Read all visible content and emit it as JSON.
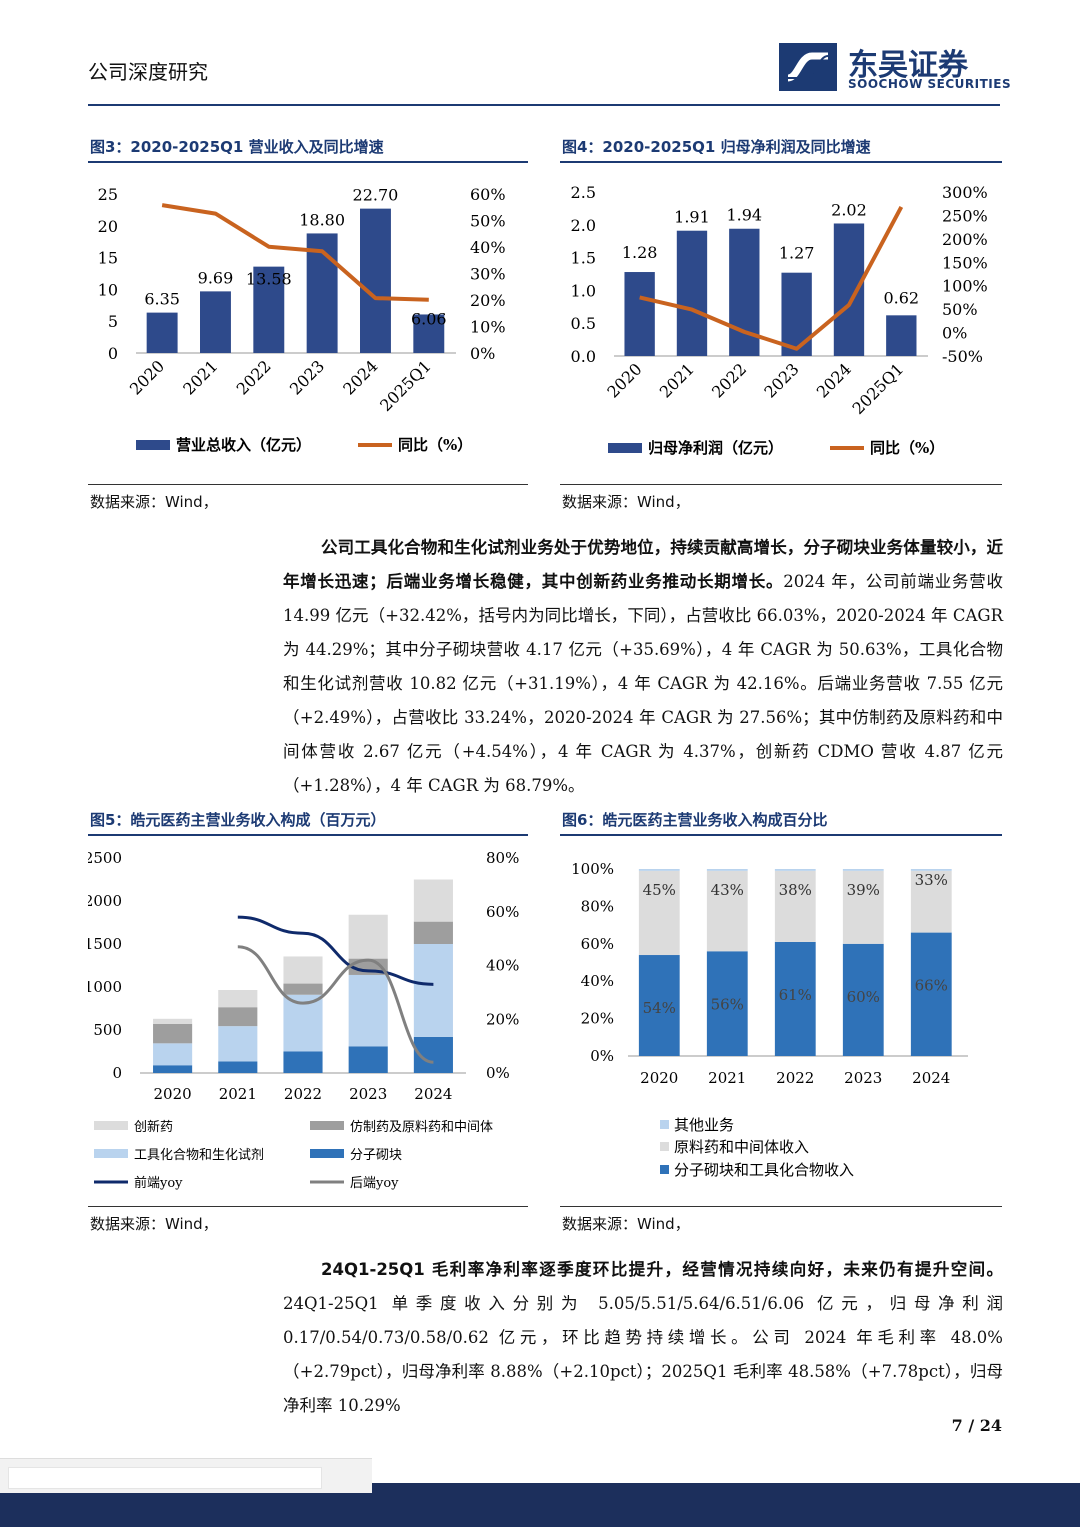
{
  "header": {
    "title": "公司深度研究",
    "logo_cn": "东吴证券",
    "logo_en": "SOOCHOW SECURITIES"
  },
  "colors": {
    "navy": "#2e4a8b",
    "orange": "#c9631f",
    "dark_blue": "#0f2a6b",
    "light_blue": "#b9d3ee",
    "mid_blue": "#2f72b8",
    "gray": "#9e9e9e",
    "light_gray": "#dcdcdc",
    "brand": "#1c3a73"
  },
  "fig3": {
    "title": "图3：2020-2025Q1 营业收入及同比增速",
    "source": "数据来源：Wind，",
    "legend": [
      "营业总收入（亿元）",
      "同比（%）"
    ],
    "y_left_ticks": [
      "25",
      "20",
      "15",
      "10",
      "5",
      "0"
    ],
    "y_right_ticks": [
      "60%",
      "50%",
      "40%",
      "30%",
      "20%",
      "10%",
      "0%"
    ],
    "bar_labels": [
      "6.35",
      "9.69",
      "13.58",
      "18.80",
      "22.70",
      "6.06"
    ]
  },
  "fig4": {
    "title": "图4：2020-2025Q1 归母净利润及同比增速",
    "source": "数据来源：Wind，",
    "legend": [
      "归母净利润（亿元）",
      "同比（%）"
    ],
    "y_left_ticks": [
      "2.5",
      "2.0",
      "1.5",
      "1.0",
      "0.5",
      "0.0"
    ],
    "y_right_ticks": [
      "300%",
      "250%",
      "200%",
      "150%",
      "100%",
      "50%",
      "0%",
      "-50%"
    ],
    "bar_labels": [
      "1.28",
      "1.91",
      "1.94",
      "1.27",
      "2.02",
      "0.62"
    ]
  },
  "fig5": {
    "title": "图5：皓元医药主营业务收入构成（百万元）",
    "source": "数据来源：Wind，",
    "legend": [
      "创新药",
      "仿制药及原料药和中间体",
      "工具化合物和生化试剂",
      "分子砌块",
      "前端yoy",
      "后端yoy"
    ],
    "y_left_ticks": [
      "2500",
      "2000",
      "1500",
      "1000",
      "500",
      "0"
    ],
    "y_right_ticks": [
      "80%",
      "60%",
      "40%",
      "20%",
      "0%"
    ]
  },
  "fig6": {
    "title": "图6：皓元医药主营业务收入构成百分比",
    "source": "数据来源：Wind，",
    "legend": [
      "其他业务",
      "原料药和中间体收入",
      "分子砌块和工具化合物收入"
    ],
    "y_ticks": [
      "100%",
      "80%",
      "60%",
      "40%",
      "20%",
      "0%"
    ],
    "top_labels": [
      "45%",
      "43%",
      "38%",
      "39%",
      "33%"
    ],
    "bottom_labels": [
      "54%",
      "56%",
      "61%",
      "60%",
      "66%"
    ]
  },
  "para1": [
    {
      "b": "公司工具化合物和生化试剂业务处于优势地位，持续贡献高增长，分子砌块业务体量较小，近年增长迅速；后端业务增长稳健，其中创新药业务推动长期增长。",
      "t": "2024 年，公司前端业务营收 14.99 亿元（+32.42%，括号内为同比增长，下同），占营收比 66.03%，2020-2024 年 CAGR 为 44.29%；其中分子砌块营收 4.17 亿元（+35.69%），4 年 CAGR 为 50.63%，工具化合物和生化试剂营收 10.82 亿元（+31.19%），4 年 CAGR 为 42.16%。后端业务营收 7.55 亿元（+2.49%），占营收比 33.24%，2020-2024 年 CAGR 为 27.56%；其中仿制药及原料药和中间体营收 2.67 亿元（+4.54%），4 年 CAGR 为 4.37%，创新药 CDMO 营收 4.87 亿元（+1.28%），4 年 CAGR 为 68.79%。"
    }
  ],
  "para2": [
    {
      "b": "24Q1-25Q1 毛利率净利率逐季度环比提升，经营情况持续向好，未来仍有提升空间。",
      "t": "24Q1-25Q1 单季度收入分别为 5.05/5.51/5.64/6.51/6.06 亿元，归母净利润 0.17/0.54/0.73/0.58/0.62 亿元，环比趋势持续增长。公司 2024 年毛利率 48.0%（+2.79pct），归母净利率 8.88%（+2.10pct）；2025Q1 毛利率 48.58%（+7.78pct），归母净利率 10.29%"
    }
  ],
  "page_number": "7 / 24",
  "chart_data": [
    {
      "type": "bar",
      "title": "图3：2020-2025Q1 营业收入及同比增速",
      "categories": [
        "2020",
        "2021",
        "2022",
        "2023",
        "2024",
        "2025Q1"
      ],
      "series": [
        {
          "name": "营业总收入（亿元）",
          "values": [
            6.35,
            9.69,
            13.58,
            18.8,
            22.7,
            6.06
          ],
          "axis": "left"
        },
        {
          "name": "同比（%）",
          "type": "line",
          "values": [
            55.8,
            52.6,
            40.1,
            38.4,
            20.7,
            20.1
          ],
          "axis": "right"
        }
      ],
      "ylim": [
        0,
        25
      ],
      "y2lim": [
        0,
        60
      ]
    },
    {
      "type": "bar",
      "title": "图4：2020-2025Q1 归母净利润及同比增速",
      "categories": [
        "2020",
        "2021",
        "2022",
        "2023",
        "2024",
        "2025Q1"
      ],
      "series": [
        {
          "name": "归母净利润（亿元）",
          "values": [
            1.28,
            1.91,
            1.94,
            1.27,
            2.02,
            0.62
          ],
          "axis": "left"
        },
        {
          "name": "同比（%）",
          "type": "line",
          "values": [
            75,
            49,
            1.5,
            -34.5,
            59,
            268
          ],
          "axis": "right"
        }
      ],
      "ylim": [
        0,
        2.5
      ],
      "y2lim": [
        -50,
        300
      ]
    },
    {
      "type": "bar",
      "title": "图5：皓元医药主营业务收入构成（百万元）",
      "categories": [
        "2020",
        "2021",
        "2022",
        "2023",
        "2024"
      ],
      "stacked": true,
      "series": [
        {
          "name": "分子砌块",
          "values": [
            90,
            135,
            250,
            310,
            420
          ]
        },
        {
          "name": "工具化合物和生化试剂",
          "values": [
            255,
            410,
            660,
            830,
            1080
          ]
        },
        {
          "name": "仿制药及原料药和中间体",
          "values": [
            225,
            220,
            130,
            190,
            260
          ]
        },
        {
          "name": "创新药",
          "values": [
            60,
            200,
            315,
            510,
            490
          ]
        },
        {
          "name": "前端yoy",
          "type": "line",
          "axis": "right",
          "values": [
            null,
            58,
            52,
            38,
            33
          ]
        },
        {
          "name": "后端yoy",
          "type": "line",
          "axis": "right",
          "values": [
            null,
            47,
            26,
            42,
            4
          ]
        }
      ],
      "ylim": [
        0,
        2500
      ],
      "y2lim": [
        0,
        80
      ]
    },
    {
      "type": "bar",
      "title": "图6：皓元医药主营业务收入构成百分比",
      "categories": [
        "2020",
        "2021",
        "2022",
        "2023",
        "2024"
      ],
      "stacked": true,
      "series": [
        {
          "name": "分子砌块和工具化合物收入",
          "values": [
            54,
            56,
            61,
            60,
            66
          ]
        },
        {
          "name": "原料药和中间体收入",
          "values": [
            45,
            43,
            38,
            39,
            33
          ]
        },
        {
          "name": "其他业务",
          "values": [
            1,
            1,
            1,
            1,
            1
          ]
        }
      ],
      "ylim": [
        0,
        100
      ]
    }
  ]
}
